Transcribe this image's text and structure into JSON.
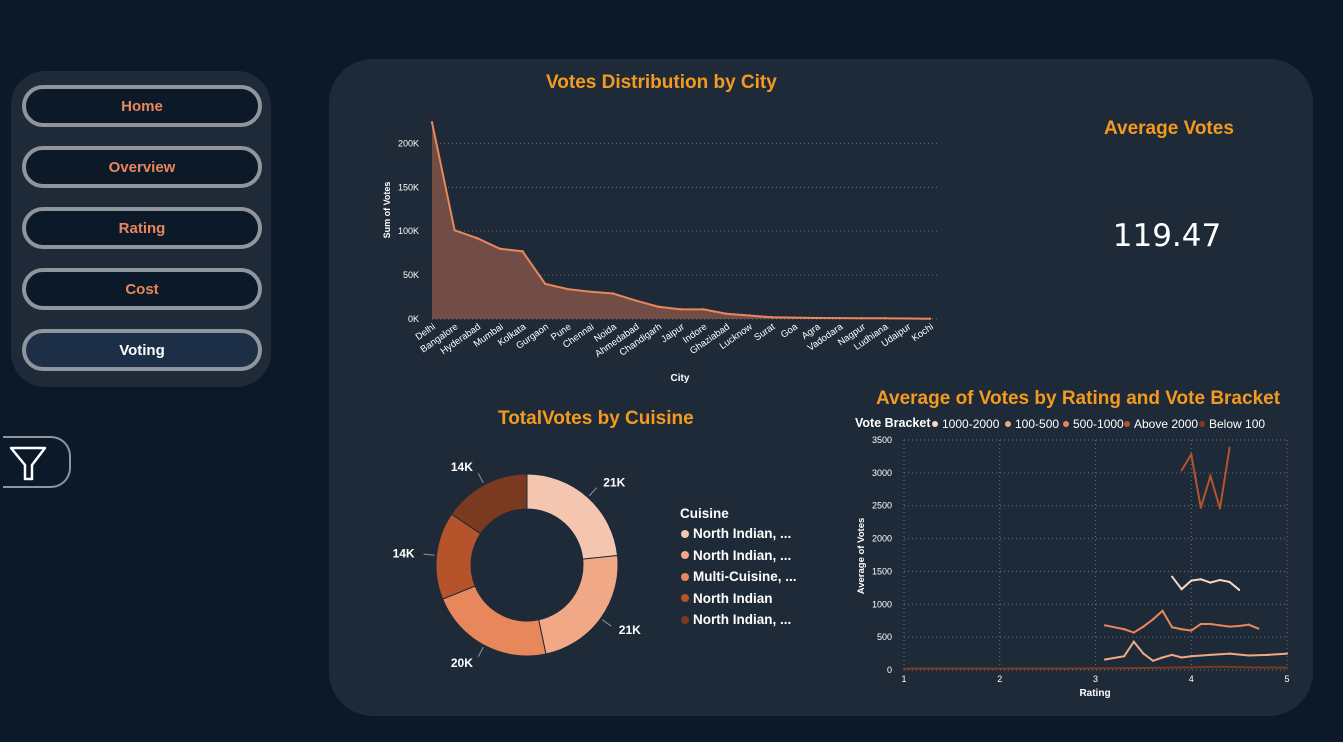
{
  "nav": {
    "items": [
      {
        "label": "Home",
        "active": false
      },
      {
        "label": "Overview",
        "active": false
      },
      {
        "label": "Rating",
        "active": false
      },
      {
        "label": "Cost",
        "active": false
      },
      {
        "label": "Voting",
        "active": true
      }
    ],
    "filter_icon": "filter-icon"
  },
  "colors": {
    "title": "#f39a1f",
    "nav_label": "#e8875b",
    "area_fill": "#7a5048",
    "area_line": "#e8875b",
    "panel": "#1f2a38",
    "background": "#0b1929"
  },
  "kpi": {
    "title": "Average Votes",
    "value": "119.47"
  },
  "chart_data": [
    {
      "type": "area",
      "title": "Votes Distribution by City",
      "xlabel": "City",
      "ylabel": "Sum of Votes",
      "yticks": [
        "0K",
        "50K",
        "100K",
        "150K",
        "200K"
      ],
      "ylim": [
        0,
        230000
      ],
      "grid": true,
      "categories": [
        "Delhi",
        "Bangalore",
        "Hyderabad",
        "Mumbai",
        "Kolkata",
        "Gurgaon",
        "Pune",
        "Chennai",
        "Noida",
        "Ahmedabad",
        "Chandigarh",
        "Jaipur",
        "Indore",
        "Ghaziabad",
        "Lucknow",
        "Surat",
        "Goa",
        "Agra",
        "Vadodara",
        "Nagpur",
        "Ludhiana",
        "Udaipur",
        "Kochi"
      ],
      "values": [
        224000,
        101000,
        92000,
        80000,
        77000,
        40000,
        34000,
        31000,
        29000,
        21000,
        14000,
        11000,
        11000,
        6000,
        4000,
        2000,
        1500,
        1200,
        1000,
        900,
        800,
        600,
        300
      ]
    },
    {
      "type": "pie",
      "title": "TotalVotes by Cuisine",
      "legend_title": "Cuisine",
      "legend_position": "right",
      "categories": [
        "North Indian, ...",
        "North Indian, ...",
        "Multi-Cuisine, ...",
        "North Indian",
        "North Indian, ..."
      ],
      "values": [
        21,
        21,
        20,
        14,
        14
      ],
      "labels": [
        "21K",
        "21K",
        "20K",
        "14K",
        "14K"
      ],
      "colors": [
        "#f4c6b0",
        "#f0a887",
        "#e8875b",
        "#b5542b",
        "#7a3a1f"
      ]
    },
    {
      "type": "line",
      "title": "Average of Votes by Rating and Vote Bracket",
      "legend_title": "Vote Bracket",
      "legend_position": "top",
      "xlabel": "Rating",
      "ylabel": "Average of Votes",
      "xlim": [
        1,
        5
      ],
      "ylim": [
        0,
        3500
      ],
      "xticks": [
        "1",
        "2",
        "3",
        "4",
        "5"
      ],
      "yticks": [
        "0",
        "500",
        "1000",
        "1500",
        "2000",
        "2500",
        "3000",
        "3500"
      ],
      "grid": true,
      "series": [
        {
          "name": "1000-2000",
          "color": "#f7d8c7",
          "points": [
            [
              3.8,
              1420
            ],
            [
              3.9,
              1230
            ],
            [
              4.0,
              1360
            ],
            [
              4.1,
              1380
            ],
            [
              4.2,
              1330
            ],
            [
              4.3,
              1370
            ],
            [
              4.4,
              1340
            ],
            [
              4.5,
              1220
            ]
          ]
        },
        {
          "name": "100-500",
          "color": "#f0a887",
          "points": [
            [
              3.1,
              160
            ],
            [
              3.3,
              210
            ],
            [
              3.4,
              430
            ],
            [
              3.5,
              250
            ],
            [
              3.6,
              140
            ],
            [
              3.7,
              190
            ],
            [
              3.8,
              230
            ],
            [
              3.9,
              190
            ],
            [
              4.0,
              210
            ],
            [
              4.2,
              230
            ],
            [
              4.4,
              250
            ],
            [
              4.6,
              220
            ],
            [
              4.8,
              230
            ],
            [
              5.0,
              250
            ]
          ]
        },
        {
          "name": "500-1000",
          "color": "#e8875b",
          "points": [
            [
              3.1,
              680
            ],
            [
              3.3,
              620
            ],
            [
              3.4,
              570
            ],
            [
              3.5,
              660
            ],
            [
              3.6,
              770
            ],
            [
              3.7,
              900
            ],
            [
              3.8,
              650
            ],
            [
              3.9,
              620
            ],
            [
              4.0,
              600
            ],
            [
              4.1,
              700
            ],
            [
              4.2,
              700
            ],
            [
              4.3,
              680
            ],
            [
              4.4,
              660
            ],
            [
              4.5,
              670
            ],
            [
              4.6,
              690
            ],
            [
              4.7,
              630
            ]
          ]
        },
        {
          "name": "Above 2000",
          "color": "#b5542b",
          "points": [
            [
              3.9,
              3040
            ],
            [
              4.0,
              3280
            ],
            [
              4.1,
              2470
            ],
            [
              4.2,
              2950
            ],
            [
              4.3,
              2460
            ],
            [
              4.4,
              3380
            ]
          ]
        },
        {
          "name": "Below 100",
          "color": "#7a3a1f",
          "points": [
            [
              1.0,
              20
            ],
            [
              2.0,
              20
            ],
            [
              2.6,
              20
            ],
            [
              3.0,
              25
            ],
            [
              3.5,
              30
            ],
            [
              4.0,
              40
            ],
            [
              4.3,
              50
            ],
            [
              4.6,
              40
            ],
            [
              5.0,
              35
            ]
          ]
        }
      ]
    }
  ]
}
